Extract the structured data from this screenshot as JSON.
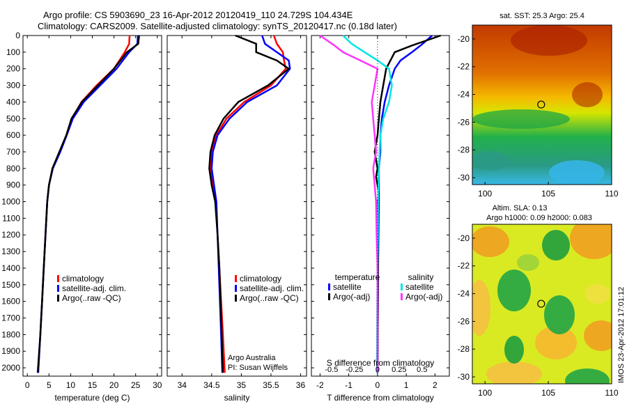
{
  "header": {
    "line1": "Argo profile: CS 5903690_23 16-Apr-2012 20120419_110 24.729S 104.434E",
    "line2": "Climatology: CARS2009. Satellite-adjusted climatology: synTS_20120417.nc (0.18d later)"
  },
  "credits": {
    "line1": "Argo Australia",
    "line2": "PI: Susan Wijffels",
    "stamp": "IMOS 23-Apr-2012 17:01:12"
  },
  "colors": {
    "climatology": "#ff0000",
    "satellite": "#0000ff",
    "argo": "#000000",
    "sal_satellite": "#00e5e5",
    "sal_argo": "#ff33ff"
  },
  "chart_data": [
    {
      "type": "line",
      "id": "temperature",
      "xlabel": "temperature (deg C)",
      "xlim": [
        -1,
        31
      ],
      "xticks": [
        0,
        5,
        10,
        15,
        20,
        25,
        30
      ],
      "ylim": [
        0,
        2050
      ],
      "yticks": [
        0,
        100,
        200,
        300,
        400,
        500,
        600,
        700,
        800,
        900,
        1000,
        1100,
        1200,
        1300,
        1400,
        1500,
        1600,
        1700,
        1800,
        1900,
        2000
      ],
      "legend": [
        "climatology",
        "satellite-adj. clim.",
        "Argo(..raw -QC)"
      ],
      "series": [
        {
          "name": "climatology",
          "color": "#ff0000",
          "points": [
            [
              23.6,
              0
            ],
            [
              23.5,
              50
            ],
            [
              22.5,
              100
            ],
            [
              20,
              200
            ],
            [
              16,
              300
            ],
            [
              12.5,
              400
            ],
            [
              10.3,
              500
            ],
            [
              9,
              600
            ],
            [
              7.5,
              700
            ],
            [
              5.8,
              800
            ],
            [
              5,
              900
            ],
            [
              4.6,
              1000
            ],
            [
              4.2,
              1200
            ],
            [
              3.8,
              1400
            ],
            [
              3.4,
              1600
            ],
            [
              3,
              1800
            ],
            [
              2.5,
              2030
            ]
          ]
        },
        {
          "name": "satellite-adj. clim.",
          "color": "#0000ff",
          "points": [
            [
              25.5,
              0
            ],
            [
              25.4,
              50
            ],
            [
              23.5,
              100
            ],
            [
              20.6,
              200
            ],
            [
              16.8,
              300
            ],
            [
              13,
              400
            ],
            [
              10.5,
              500
            ],
            [
              9.1,
              600
            ],
            [
              7.6,
              700
            ],
            [
              5.9,
              800
            ],
            [
              5,
              900
            ],
            [
              4.6,
              1000
            ],
            [
              4.2,
              1200
            ],
            [
              3.8,
              1400
            ],
            [
              3.4,
              1600
            ],
            [
              3,
              1800
            ],
            [
              2.5,
              2030
            ]
          ]
        },
        {
          "name": "Argo(..raw -QC)",
          "color": "#000000",
          "points": [
            [
              25.8,
              0
            ],
            [
              25.6,
              50
            ],
            [
              23,
              100
            ],
            [
              20,
              200
            ],
            [
              16.3,
              300
            ],
            [
              12.6,
              400
            ],
            [
              10.2,
              500
            ],
            [
              9,
              600
            ],
            [
              7.4,
              700
            ],
            [
              5.8,
              800
            ],
            [
              5,
              900
            ],
            [
              4.6,
              1000
            ],
            [
              4.2,
              1200
            ],
            [
              3.8,
              1400
            ],
            [
              3.4,
              1600
            ],
            [
              3,
              1800
            ],
            [
              2.4,
              2030
            ]
          ]
        }
      ]
    },
    {
      "type": "line",
      "id": "salinity",
      "xlabel": "salinity",
      "xlim": [
        33.75,
        36.1
      ],
      "xticks": [
        34,
        34.5,
        35,
        35.5,
        36
      ],
      "ylim": [
        0,
        2050
      ],
      "legend": [
        "climatology",
        "satellite-adj. clim.",
        "Argo(..raw -QC)"
      ],
      "series": [
        {
          "name": "climatology",
          "color": "#ff0000",
          "points": [
            [
              35.55,
              0
            ],
            [
              35.6,
              50
            ],
            [
              35.7,
              100
            ],
            [
              35.72,
              150
            ],
            [
              35.75,
              200
            ],
            [
              35.5,
              300
            ],
            [
              35.05,
              400
            ],
            [
              34.75,
              500
            ],
            [
              34.58,
              600
            ],
            [
              34.5,
              700
            ],
            [
              34.48,
              800
            ],
            [
              34.52,
              900
            ],
            [
              34.57,
              1000
            ],
            [
              34.6,
              1200
            ],
            [
              34.63,
              1400
            ],
            [
              34.66,
              1600
            ],
            [
              34.69,
              1800
            ],
            [
              34.72,
              2030
            ]
          ]
        },
        {
          "name": "satellite-adj. clim.",
          "color": "#0000ff",
          "points": [
            [
              35.35,
              0
            ],
            [
              35.4,
              50
            ],
            [
              35.6,
              100
            ],
            [
              35.8,
              150
            ],
            [
              35.82,
              200
            ],
            [
              35.6,
              300
            ],
            [
              35.1,
              400
            ],
            [
              34.8,
              500
            ],
            [
              34.6,
              600
            ],
            [
              34.52,
              700
            ],
            [
              34.5,
              800
            ],
            [
              34.54,
              900
            ],
            [
              34.58,
              1000
            ],
            [
              34.6,
              1200
            ],
            [
              34.62,
              1400
            ],
            [
              34.64,
              1600
            ],
            [
              34.66,
              1800
            ],
            [
              34.68,
              2030
            ]
          ]
        },
        {
          "name": "Argo(..raw -QC)",
          "color": "#000000",
          "points": [
            [
              34.9,
              0
            ],
            [
              35.25,
              50
            ],
            [
              35.25,
              100
            ],
            [
              35.6,
              150
            ],
            [
              35.8,
              200
            ],
            [
              35.45,
              300
            ],
            [
              34.95,
              400
            ],
            [
              34.7,
              500
            ],
            [
              34.55,
              600
            ],
            [
              34.48,
              700
            ],
            [
              34.46,
              800
            ],
            [
              34.5,
              900
            ],
            [
              34.56,
              1000
            ],
            [
              34.6,
              1200
            ],
            [
              34.63,
              1400
            ],
            [
              34.65,
              1600
            ],
            [
              34.67,
              1800
            ],
            [
              34.69,
              2030
            ]
          ]
        }
      ]
    },
    {
      "type": "line",
      "id": "difference",
      "xlabel": "T difference from climatology",
      "xlabel_top": "S difference from climatology",
      "xlim": [
        -2.3,
        2.5
      ],
      "xticks": [
        -2,
        -1,
        0,
        1,
        2
      ],
      "sticks": [
        "-0.5",
        "-0.25",
        "0",
        "0.25",
        "0.5"
      ],
      "ylim": [
        0,
        2050
      ],
      "legend_headers": [
        "temperature",
        "salinity"
      ],
      "legend": [
        "satellite",
        "Argo(-adj)",
        "satellite",
        "Argo(-adj)"
      ],
      "series": [
        {
          "name": "satellite",
          "group": "temperature",
          "color": "#0000ff",
          "points": [
            [
              1.9,
              0
            ],
            [
              1.5,
              60
            ],
            [
              1.2,
              100
            ],
            [
              0.8,
              150
            ],
            [
              0.6,
              200
            ],
            [
              0.4,
              300
            ],
            [
              0.25,
              400
            ],
            [
              0.15,
              500
            ],
            [
              0.1,
              600
            ],
            [
              0.1,
              700
            ],
            [
              0.05,
              800
            ],
            [
              0.05,
              1000
            ],
            [
              0.02,
              1400
            ],
            [
              0,
              2030
            ]
          ]
        },
        {
          "name": "Argo(-adj)",
          "group": "temperature",
          "color": "#000000",
          "points": [
            [
              2.2,
              0
            ],
            [
              1.2,
              60
            ],
            [
              0.6,
              100
            ],
            [
              0.3,
              200
            ],
            [
              0.2,
              300
            ],
            [
              0.1,
              400
            ],
            [
              0.05,
              500
            ],
            [
              0,
              600
            ],
            [
              -0.1,
              700
            ],
            [
              0,
              800
            ],
            [
              -0.05,
              850
            ],
            [
              0.05,
              950
            ],
            [
              0,
              1000
            ],
            [
              0.02,
              1400
            ],
            [
              0,
              2030
            ]
          ]
        },
        {
          "name": "satellite",
          "group": "salinity",
          "color": "#00e5e5",
          "points": [
            [
              -1.2,
              0
            ],
            [
              -0.9,
              50
            ],
            [
              0,
              150
            ],
            [
              0.4,
              200
            ],
            [
              0.5,
              300
            ],
            [
              0.4,
              400
            ],
            [
              0.2,
              500
            ],
            [
              0.1,
              600
            ],
            [
              0.05,
              800
            ],
            [
              0.02,
              1000
            ],
            [
              0,
              1400
            ],
            [
              -0.02,
              2030
            ]
          ]
        },
        {
          "name": "Argo(-adj)",
          "group": "salinity",
          "color": "#ff33ff",
          "points": [
            [
              -2.0,
              0
            ],
            [
              -1.5,
              60
            ],
            [
              -1.2,
              100
            ],
            [
              -0.6,
              150
            ],
            [
              0,
              200
            ],
            [
              -0.1,
              300
            ],
            [
              -0.2,
              400
            ],
            [
              -0.15,
              500
            ],
            [
              -0.1,
              600
            ],
            [
              -0.05,
              700
            ],
            [
              -0.15,
              800
            ],
            [
              -0.1,
              900
            ],
            [
              -0.05,
              1000
            ],
            [
              -0.03,
              1200
            ],
            [
              0,
              1400
            ],
            [
              0,
              2030
            ]
          ]
        }
      ]
    },
    {
      "type": "heatmap",
      "id": "sst_map",
      "title": "sat. SST: 25.3 Argo: 25.4",
      "xlim": [
        99,
        110
      ],
      "ylim": [
        -30.5,
        -19
      ],
      "xticks": [
        100,
        105,
        110
      ],
      "yticks": [
        -20,
        -22,
        -24,
        -26,
        -28,
        -30
      ],
      "marker": {
        "lon": 104.434,
        "lat": -24.729
      }
    },
    {
      "type": "heatmap",
      "id": "sla_map",
      "title_line1": "Altim. SLA: 0.13",
      "title_line2": "Argo h1000: 0.09 h2000: 0.083",
      "xlim": [
        99,
        110
      ],
      "ylim": [
        -30.5,
        -19
      ],
      "xticks": [
        100,
        105,
        110
      ],
      "yticks": [
        -20,
        -22,
        -24,
        -26,
        -28,
        -30
      ],
      "marker": {
        "lon": 104.434,
        "lat": -24.729
      }
    }
  ]
}
